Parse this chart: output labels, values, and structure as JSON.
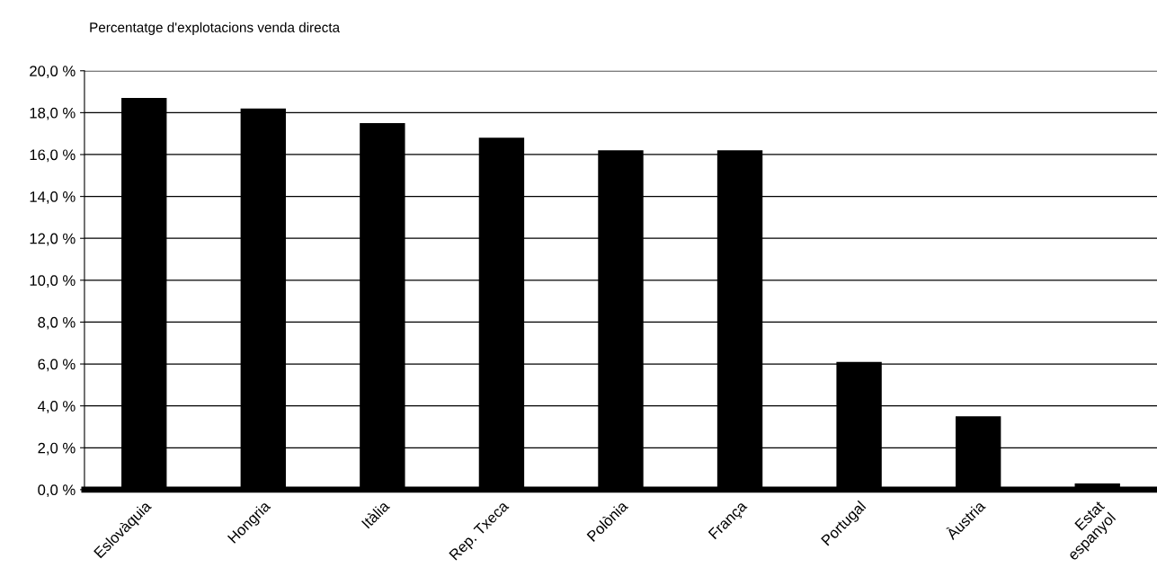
{
  "chart_data": {
    "type": "bar",
    "title": "Percentatge d'explotacions venda directa",
    "categories": [
      "Eslovàquia",
      "Hongria",
      "Itàlia",
      "Rep. Txeca",
      "Polònia",
      "França",
      "Portugal",
      "Àustria",
      "Estat\nespanyol"
    ],
    "values": [
      18.7,
      18.2,
      17.5,
      16.8,
      16.2,
      16.2,
      6.1,
      3.5,
      0.3
    ],
    "color": "#000000",
    "ylim": [
      0,
      20
    ],
    "yticks": [
      {
        "value": 0,
        "label": "0,0 %"
      },
      {
        "value": 2,
        "label": "2,0 %"
      },
      {
        "value": 4,
        "label": "4,0 %"
      },
      {
        "value": 6,
        "label": "6,0 %"
      },
      {
        "value": 8,
        "label": "8,0 %"
      },
      {
        "value": 10,
        "label": "10,0 %"
      },
      {
        "value": 12,
        "label": "12,0 %"
      },
      {
        "value": 14,
        "label": "14,0 %"
      },
      {
        "value": 16,
        "label": "16,0 %"
      },
      {
        "value": 18,
        "label": "18,0 %"
      },
      {
        "value": 20,
        "label": "20,0 %"
      }
    ],
    "grid": "y",
    "legend": false
  }
}
